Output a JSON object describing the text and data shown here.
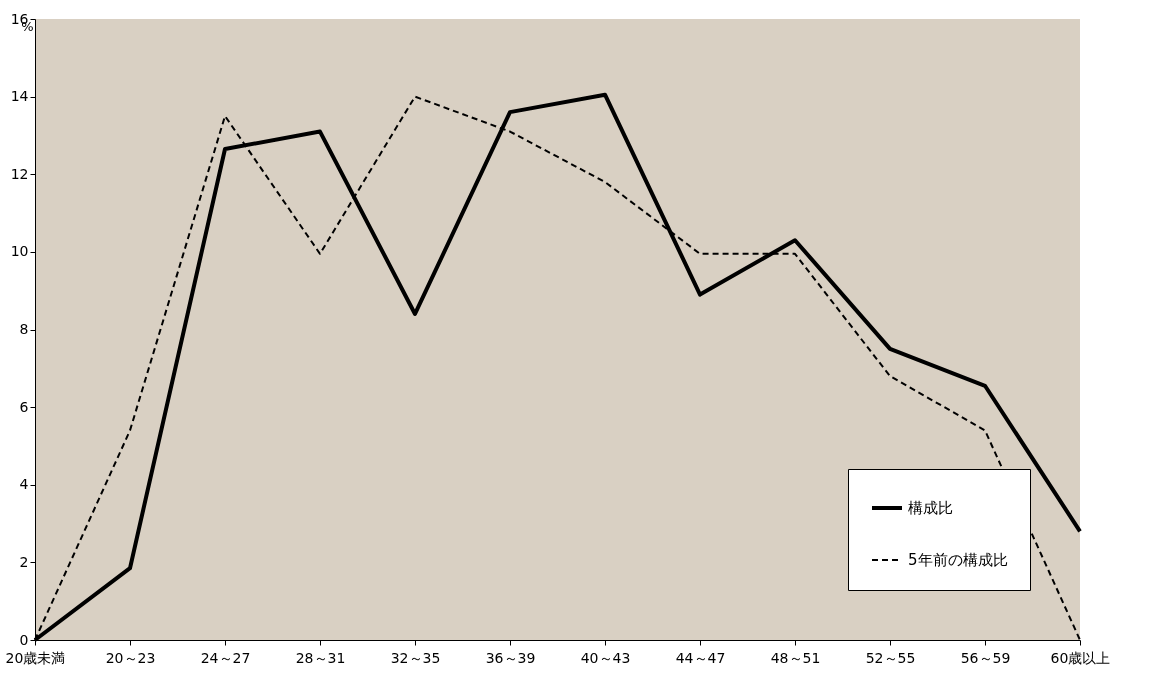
{
  "chart_data": {
    "type": "line",
    "ylabel": "%",
    "categories": [
      "20歳未満",
      "20～23",
      "24～27",
      "28～31",
      "32～35",
      "36～39",
      "40～43",
      "44～47",
      "48～51",
      "52～55",
      "56～59",
      "60歳以上"
    ],
    "series": [
      {
        "name": "構成比",
        "color": "#000000",
        "line_style": "solid",
        "values": [
          0,
          1.85,
          12.65,
          13.1,
          8.4,
          13.6,
          14.05,
          8.9,
          10.3,
          7.5,
          6.55,
          2.8
        ]
      },
      {
        "name": "5年前の構成比",
        "color": "#000000",
        "line_style": "dashed",
        "values": [
          0,
          5.4,
          13.5,
          9.95,
          14.0,
          13.1,
          11.8,
          9.95,
          9.95,
          6.8,
          5.4,
          0
        ]
      }
    ],
    "ylim": [
      0,
      16
    ],
    "yticks": [
      0,
      2,
      4,
      6,
      8,
      10,
      12,
      14,
      16
    ],
    "grid": false,
    "legend": "bottom right",
    "marker": "none"
  }
}
